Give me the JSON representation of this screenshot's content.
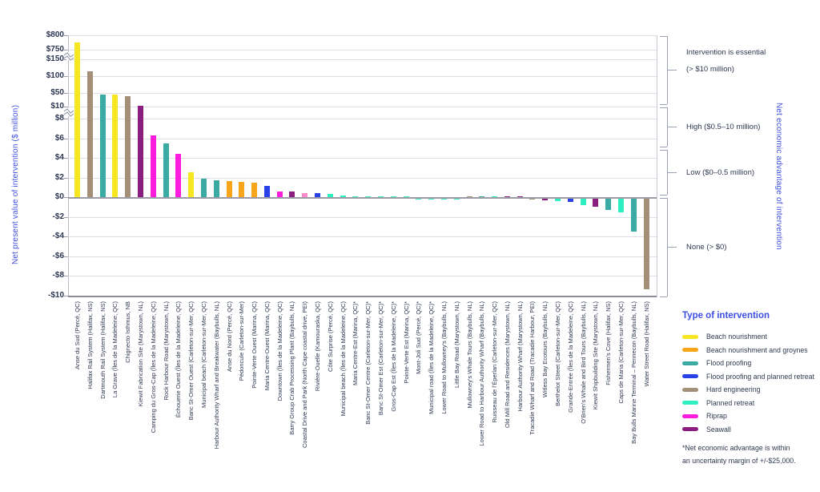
{
  "y_axis": {
    "title": "Net present value of intervention ($ million)",
    "ticks": [
      {
        "label": "$800",
        "value": 800
      },
      {
        "label": "$750",
        "value": 750
      },
      {
        "label": "$150",
        "value": 150
      },
      {
        "label": "$100",
        "value": 100
      },
      {
        "label": "$50",
        "value": 50
      },
      {
        "label": "$10",
        "value": 10
      },
      {
        "label": "$8",
        "value": 8
      },
      {
        "label": "$6",
        "value": 6
      },
      {
        "label": "$4",
        "value": 4
      },
      {
        "label": "$2",
        "value": 2
      },
      {
        "label": "$0",
        "value": 0
      },
      {
        "label": "-$2",
        "value": -2
      },
      {
        "label": "-$4",
        "value": -4
      },
      {
        "label": "-$6",
        "value": -6
      },
      {
        "label": "-$8",
        "value": -8
      },
      {
        "label": "-$10",
        "value": -10
      }
    ]
  },
  "right_axis": {
    "title": "Net economic advantage of intervention",
    "zones": [
      {
        "line1": "Intervention is essential",
        "line2": "(> $10 million)"
      },
      {
        "line1": "High ($0.5–10 million)",
        "line2": ""
      },
      {
        "line1": "Low ($0–0.5 million)",
        "line2": ""
      },
      {
        "line1": "None (> $0)",
        "line2": ""
      }
    ]
  },
  "legend": {
    "title": "Type of intervention",
    "items": [
      {
        "label": "Beach nourishment",
        "type": "beach_nourishment"
      },
      {
        "label": "Beach nourishment and groynes",
        "type": "beach_nourishment_groynes"
      },
      {
        "label": "Flood proofing",
        "type": "flood_proofing"
      },
      {
        "label": "Flood proofing and planned retreat",
        "type": "flood_proofing_planned_retreat"
      },
      {
        "label": "Hard engineering",
        "type": "hard_engineering"
      },
      {
        "label": "Planned retreat",
        "type": "planned_retreat"
      },
      {
        "label": "Riprap",
        "type": "riprap"
      },
      {
        "label": "Seawall",
        "type": "seawall"
      }
    ]
  },
  "footnote": {
    "lines": [
      "*Net economic advantage is within",
      "an uncertainty margin of +/-$25,000."
    ]
  },
  "chart_data": {
    "type": "bar",
    "title": "",
    "xlabel": "",
    "ylabel": "Net present value of intervention ($ million)",
    "axis_breaks": [
      [
        10,
        50
      ],
      [
        150,
        750
      ]
    ],
    "ylim_segments": [
      [
        -10,
        8
      ],
      [
        10,
        150
      ],
      [
        750,
        800
      ]
    ],
    "grid": true,
    "legend_position": "right",
    "type_colors": {
      "beach_nourishment": "#f7e723",
      "beach_nourishment_groynes": "#f9a51a",
      "flood_proofing": "#3aaaa3",
      "flood_proofing_planned_retreat": "#2a41e8",
      "hard_engineering": "#a49078",
      "planned_retreat": "#2defc1",
      "riprap": "#fc1cde",
      "seawall": "#8b1d80"
    },
    "bars": [
      {
        "label": "Anse du Sud (Percé, QC)",
        "type": "beach_nourishment",
        "value": 775
      },
      {
        "label": "Halifax Rail System (Halifax, NS)",
        "type": "hard_engineering",
        "value": 115
      },
      {
        "label": "Dartmouth Rail System (Halifax, NS)",
        "type": "flood_proofing",
        "value": 46
      },
      {
        "label": "La Grave (Îles de la Madeleine, QC)",
        "type": "beach_nourishment",
        "value": 45
      },
      {
        "label": "Chignecto Isthmus, NB",
        "type": "hard_engineering",
        "value": 42
      },
      {
        "label": "Kiewit Fabrication Site (Marystown, NL)",
        "type": "seawall",
        "value": 12
      },
      {
        "label": "Camping du Gros-Cap (Îles de la Madeleine, QC)",
        "type": "riprap",
        "value": 6.3
      },
      {
        "label": "Rock Harbour Road (Marystown, NL)",
        "type": "flood_proofing",
        "value": 5.5
      },
      {
        "label": "Échouerie Ouest (Îles de la Madeleine, QC)",
        "type": "riprap",
        "value": 4.4
      },
      {
        "label": "Banc St-Omer Ouest (Carleton-sur-Mer, QC)",
        "type": "beach_nourishment",
        "value": 2.5
      },
      {
        "label": "Municipal beach (Carleton-sur-Mer, QC)",
        "type": "flood_proofing",
        "value": 1.9
      },
      {
        "label": "Harbour Authority Wharf and Breakwater (Baybulls, NL)",
        "type": "flood_proofing",
        "value": 1.7
      },
      {
        "label": "Anse du Nord (Percé, QC)",
        "type": "beach_nourishment_groynes",
        "value": 1.6
      },
      {
        "label": "Pédoncule (Carleton-sur-Mer)",
        "type": "beach_nourishment_groynes",
        "value": 1.55
      },
      {
        "label": "Pointe-Verte Ouest (Marina, QC)",
        "type": "beach_nourishment_groynes",
        "value": 1.5
      },
      {
        "label": "Maria Centre-Ouest (Marina, QC)",
        "type": "flood_proofing_planned_retreat",
        "value": 1.15
      },
      {
        "label": "Downtown (Îles de la Madeleine, QC)",
        "type": "riprap",
        "value": 0.6
      },
      {
        "label": "Barry Group Crab Processing Plant (Baybulls, NL)",
        "type": "seawall",
        "value": 0.55
      },
      {
        "label": "Coastal Drive and Park (North Cape coastal drive, PEI)",
        "type": "riprap",
        "value": 0.45,
        "color_override": "#fb8acd"
      },
      {
        "label": "Rivière-Ouelle (Kamouraska, QC)",
        "type": "flood_proofing_planned_retreat",
        "value": 0.4
      },
      {
        "label": "Côte Surprise (Percé, QC)",
        "type": "planned_retreat",
        "value": 0.3
      },
      {
        "label": "Municipal beach (Îles de la Madeleine, QC)",
        "type": "planned_retreat",
        "value": 0.2
      },
      {
        "label": "Maria Centre-Est (Marina, QC)*",
        "type": "planned_retreat",
        "value": 0.12
      },
      {
        "label": "Banc St-Omer Centre (Carleton-sur-Mer, QC)*",
        "type": "planned_retreat",
        "value": 0.12
      },
      {
        "label": "Banc St-Omer Est (Carleton-sur-Mer, QC)*",
        "type": "planned_retreat",
        "value": 0.1
      },
      {
        "label": "Gros-Cap Est (Îles de la Madeleine, QC)*",
        "type": "planned_retreat",
        "value": 0.1
      },
      {
        "label": "Pointe-Verte Est (Marina, QC)*",
        "type": "planned_retreat",
        "value": 0.08
      },
      {
        "label": "Mont-Joli Sud (Percé, QC)*",
        "type": "planned_retreat",
        "value": -0.1
      },
      {
        "label": "Municipal road (Îles de la Madeleine, QC)*",
        "type": "planned_retreat",
        "value": -0.1
      },
      {
        "label": "Lower Road to Mullowney's (Baybulls, NL)",
        "type": "planned_retreat",
        "value": -0.08
      },
      {
        "label": "Little Bay Road (Marystown, NL)",
        "type": "planned_retreat",
        "value": -0.15
      },
      {
        "label": "Mullowney's Whale Tours (Baybulls, NL)",
        "type": "hard_engineering",
        "value": 0.08
      },
      {
        "label": "Lower Road to Harbour Authority Wharf (Baybulls, NL)",
        "type": "flood_proofing",
        "value": 0.08
      },
      {
        "label": "Ruisseau de l'Éperlan (Carleton-sur-Mer, QC)",
        "type": "planned_retreat",
        "value": 0.06
      },
      {
        "label": "Old Mill Road and Residences (Marystown, NL)",
        "type": "seawall",
        "value": 0.05
      },
      {
        "label": "Harbour Authority Wharf (Marystown, NL)",
        "type": "seawall",
        "value": 0.05
      },
      {
        "label": "Tracadie Wharf and Road (Tracadie Harbour, PEI)",
        "type": "hard_engineering",
        "value": -0.15
      },
      {
        "label": "Witless Bay Ecotours (Baybulls, NL)",
        "type": "seawall",
        "value": -0.25
      },
      {
        "label": "Berthelot Street (Carleton-sur-Mer, QC)",
        "type": "planned_retreat",
        "value": -0.3
      },
      {
        "label": "Grande-Entrée (Îles de la Madeleine, QC)",
        "type": "flood_proofing_planned_retreat",
        "value": -0.4
      },
      {
        "label": "O'Brien's Whale and Bird Tours (Baybulls, NL)",
        "type": "planned_retreat",
        "value": -0.7
      },
      {
        "label": "Kiewit Shipbuilding Site (Marystown, NL)",
        "type": "seawall",
        "value": -0.9
      },
      {
        "label": "Fishermen's Cove (Halifax, NS)",
        "type": "flood_proofing",
        "value": -1.2
      },
      {
        "label": "Caps de Maria (Carleton-sur-Mer, QC)",
        "type": "planned_retreat",
        "value": -1.5
      },
      {
        "label": "Bay Bulls Marine Terminal – Pennecon (Baybulls, NL)",
        "type": "flood_proofing",
        "value": -3.4
      },
      {
        "label": "Water Street Road (Halifax, NS)",
        "type": "hard_engineering",
        "value": -9.3
      }
    ]
  }
}
